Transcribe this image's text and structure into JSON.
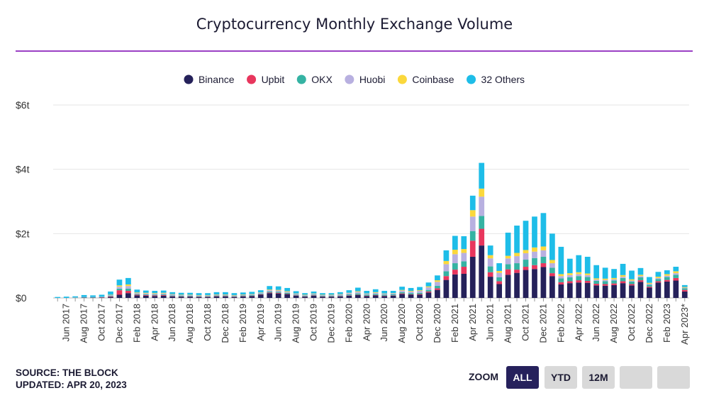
{
  "title": "Cryptocurrency Monthly Exchange Volume",
  "footer": {
    "source": "SOURCE: THE BLOCK",
    "updated": "UPDATED: APR 20, 2023"
  },
  "zoom": {
    "label": "ZOOM",
    "buttons": [
      "ALL",
      "YTD",
      "12M",
      "",
      ""
    ],
    "active": "ALL"
  },
  "colors": {
    "Binance": "#25215a",
    "Upbit": "#e8365d",
    "OKX": "#35b3a3",
    "Huobi": "#b8b0e0",
    "Coinbase": "#fbd83c",
    "32 Others": "#1ebde8",
    "title_rule": "#9b40c4"
  },
  "chart_data": {
    "type": "bar",
    "stacked": true,
    "title": "Cryptocurrency Monthly Exchange Volume",
    "xlabel": "",
    "ylabel": "",
    "ylim": [
      0,
      6
    ],
    "y_unit": "trillion USD",
    "y_ticks": [
      "$0",
      "$2t",
      "$4t",
      "$6t"
    ],
    "y_tick_values": [
      0,
      2,
      4,
      6
    ],
    "grid": true,
    "legend_position": "top-center",
    "categories": [
      "May 2017",
      "Jun 2017",
      "Jul 2017",
      "Aug 2017",
      "Sep 2017",
      "Oct 2017",
      "Nov 2017",
      "Dec 2017",
      "Jan 2018",
      "Feb 2018",
      "Mar 2018",
      "Apr 2018",
      "May 2018",
      "Jun 2018",
      "Jul 2018",
      "Aug 2018",
      "Sep 2018",
      "Oct 2018",
      "Nov 2018",
      "Dec 2018",
      "Jan 2019",
      "Feb 2019",
      "Mar 2019",
      "Apr 2019",
      "May 2019",
      "Jun 2019",
      "Jul 2019",
      "Aug 2019",
      "Sep 2019",
      "Oct 2019",
      "Nov 2019",
      "Dec 2019",
      "Jan 2020",
      "Feb 2020",
      "Mar 2020",
      "Apr 2020",
      "May 2020",
      "Jun 2020",
      "Jul 2020",
      "Aug 2020",
      "Sep 2020",
      "Oct 2020",
      "Nov 2020",
      "Dec 2020",
      "Jan 2021",
      "Feb 2021",
      "Mar 2021",
      "Apr 2021",
      "May 2021",
      "Jun 2021",
      "Jul 2021",
      "Aug 2021",
      "Sep 2021",
      "Oct 2021",
      "Nov 2021",
      "Dec 2021",
      "Jan 2022",
      "Feb 2022",
      "Mar 2022",
      "Apr 2022",
      "May 2022",
      "Jun 2022",
      "Jul 2022",
      "Aug 2022",
      "Sep 2022",
      "Oct 2022",
      "Nov 2022",
      "Dec 2022",
      "Jan 2023",
      "Feb 2023",
      "Mar 2023",
      "Apr 2023*"
    ],
    "x_tick_labels": [
      "Jun 2017",
      "Aug 2017",
      "Oct 2017",
      "Dec 2017",
      "Feb 2018",
      "Apr 2018",
      "Jun 2018",
      "Aug 2018",
      "Oct 2018",
      "Dec 2018",
      "Feb 2019",
      "Apr 2019",
      "Jun 2019",
      "Aug 2019",
      "Oct 2019",
      "Dec 2019",
      "Feb 2020",
      "Apr 2020",
      "Jun 2020",
      "Aug 2020",
      "Oct 2020",
      "Dec 2020",
      "Feb 2021",
      "Apr 2021",
      "Jun 2021",
      "Aug 2021",
      "Oct 2021",
      "Dec 2021",
      "Feb 2022",
      "Apr 2022",
      "Jun 2022",
      "Aug 2022",
      "Oct 2022",
      "Dec 2022",
      "Feb 2023",
      "Apr 2023*"
    ],
    "series": [
      {
        "name": "Binance",
        "values": [
          0,
          0,
          0,
          0.01,
          0.01,
          0.01,
          0.03,
          0.1,
          0.15,
          0.08,
          0.07,
          0.06,
          0.07,
          0.05,
          0.04,
          0.04,
          0.03,
          0.03,
          0.05,
          0.05,
          0.03,
          0.05,
          0.06,
          0.1,
          0.15,
          0.14,
          0.12,
          0.07,
          0.04,
          0.07,
          0.04,
          0.04,
          0.05,
          0.07,
          0.09,
          0.06,
          0.08,
          0.06,
          0.07,
          0.12,
          0.1,
          0.1,
          0.17,
          0.25,
          0.56,
          0.73,
          0.75,
          1.28,
          1.63,
          0.66,
          0.43,
          0.72,
          0.78,
          0.87,
          0.9,
          0.96,
          0.68,
          0.42,
          0.46,
          0.48,
          0.47,
          0.39,
          0.38,
          0.4,
          0.46,
          0.39,
          0.5,
          0.32,
          0.48,
          0.51,
          0.54,
          0.2
        ]
      },
      {
        "name": "Upbit",
        "values": [
          0,
          0,
          0,
          0,
          0,
          0.01,
          0.02,
          0.14,
          0.07,
          0.02,
          0.02,
          0.02,
          0.02,
          0.01,
          0.01,
          0.01,
          0.01,
          0.01,
          0.01,
          0.01,
          0.01,
          0.01,
          0.01,
          0.01,
          0.02,
          0.02,
          0.01,
          0.01,
          0.01,
          0.01,
          0.01,
          0.01,
          0.01,
          0.01,
          0.01,
          0.01,
          0.01,
          0.01,
          0.01,
          0.02,
          0.01,
          0.02,
          0.03,
          0.05,
          0.12,
          0.15,
          0.22,
          0.5,
          0.52,
          0.14,
          0.09,
          0.17,
          0.1,
          0.1,
          0.12,
          0.12,
          0.09,
          0.07,
          0.06,
          0.07,
          0.06,
          0.05,
          0.05,
          0.05,
          0.06,
          0.04,
          0.05,
          0.03,
          0.04,
          0.05,
          0.08,
          0.05
        ]
      },
      {
        "name": "OKX",
        "values": [
          0,
          0,
          0.01,
          0.01,
          0.01,
          0.01,
          0.02,
          0.05,
          0.07,
          0.02,
          0.02,
          0.02,
          0.02,
          0.02,
          0.02,
          0.02,
          0.02,
          0.02,
          0.02,
          0.02,
          0.02,
          0.02,
          0.02,
          0.02,
          0.03,
          0.03,
          0.03,
          0.02,
          0.02,
          0.02,
          0.02,
          0.02,
          0.02,
          0.03,
          0.04,
          0.03,
          0.03,
          0.03,
          0.03,
          0.04,
          0.04,
          0.04,
          0.05,
          0.08,
          0.15,
          0.2,
          0.17,
          0.3,
          0.4,
          0.18,
          0.12,
          0.16,
          0.2,
          0.22,
          0.22,
          0.2,
          0.17,
          0.12,
          0.12,
          0.13,
          0.12,
          0.09,
          0.09,
          0.09,
          0.1,
          0.08,
          0.09,
          0.06,
          0.07,
          0.09,
          0.1,
          0.05
        ]
      },
      {
        "name": "Huobi",
        "values": [
          0,
          0,
          0.01,
          0.01,
          0.01,
          0.01,
          0.02,
          0.06,
          0.08,
          0.03,
          0.03,
          0.03,
          0.03,
          0.03,
          0.02,
          0.02,
          0.02,
          0.02,
          0.02,
          0.02,
          0.02,
          0.02,
          0.02,
          0.03,
          0.04,
          0.04,
          0.03,
          0.03,
          0.02,
          0.03,
          0.02,
          0.02,
          0.03,
          0.04,
          0.05,
          0.03,
          0.04,
          0.03,
          0.03,
          0.05,
          0.05,
          0.06,
          0.08,
          0.12,
          0.22,
          0.28,
          0.26,
          0.45,
          0.6,
          0.25,
          0.14,
          0.18,
          0.22,
          0.2,
          0.2,
          0.2,
          0.14,
          0.07,
          0.07,
          0.06,
          0.06,
          0.04,
          0.04,
          0.04,
          0.04,
          0.03,
          0.04,
          0.03,
          0.03,
          0.04,
          0.05,
          0.02
        ]
      },
      {
        "name": "Coinbase",
        "values": [
          0,
          0,
          0,
          0,
          0,
          0,
          0.01,
          0.04,
          0.05,
          0.02,
          0.02,
          0.02,
          0.02,
          0.01,
          0.01,
          0.01,
          0.01,
          0.01,
          0.01,
          0.01,
          0.01,
          0.01,
          0.01,
          0.01,
          0.02,
          0.02,
          0.02,
          0.01,
          0.01,
          0.01,
          0.01,
          0.01,
          0.01,
          0.01,
          0.02,
          0.01,
          0.02,
          0.01,
          0.01,
          0.02,
          0.02,
          0.02,
          0.03,
          0.05,
          0.1,
          0.14,
          0.12,
          0.2,
          0.25,
          0.1,
          0.06,
          0.08,
          0.1,
          0.1,
          0.13,
          0.12,
          0.1,
          0.06,
          0.06,
          0.06,
          0.05,
          0.04,
          0.04,
          0.04,
          0.05,
          0.04,
          0.04,
          0.03,
          0.04,
          0.05,
          0.06,
          0.02
        ]
      },
      {
        "name": "32 Others",
        "values": [
          0.03,
          0.04,
          0.03,
          0.06,
          0.05,
          0.06,
          0.1,
          0.18,
          0.2,
          0.09,
          0.07,
          0.07,
          0.07,
          0.06,
          0.06,
          0.06,
          0.06,
          0.06,
          0.07,
          0.07,
          0.06,
          0.06,
          0.07,
          0.07,
          0.11,
          0.11,
          0.1,
          0.07,
          0.05,
          0.06,
          0.05,
          0.05,
          0.06,
          0.08,
          0.11,
          0.08,
          0.09,
          0.08,
          0.07,
          0.1,
          0.09,
          0.1,
          0.12,
          0.15,
          0.33,
          0.43,
          0.4,
          0.45,
          0.8,
          0.3,
          0.24,
          0.72,
          0.85,
          0.91,
          0.96,
          1.04,
          0.82,
          0.85,
          0.45,
          0.53,
          0.52,
          0.41,
          0.34,
          0.28,
          0.35,
          0.27,
          0.21,
          0.18,
          0.15,
          0.12,
          0.14,
          0.06
        ]
      }
    ]
  }
}
